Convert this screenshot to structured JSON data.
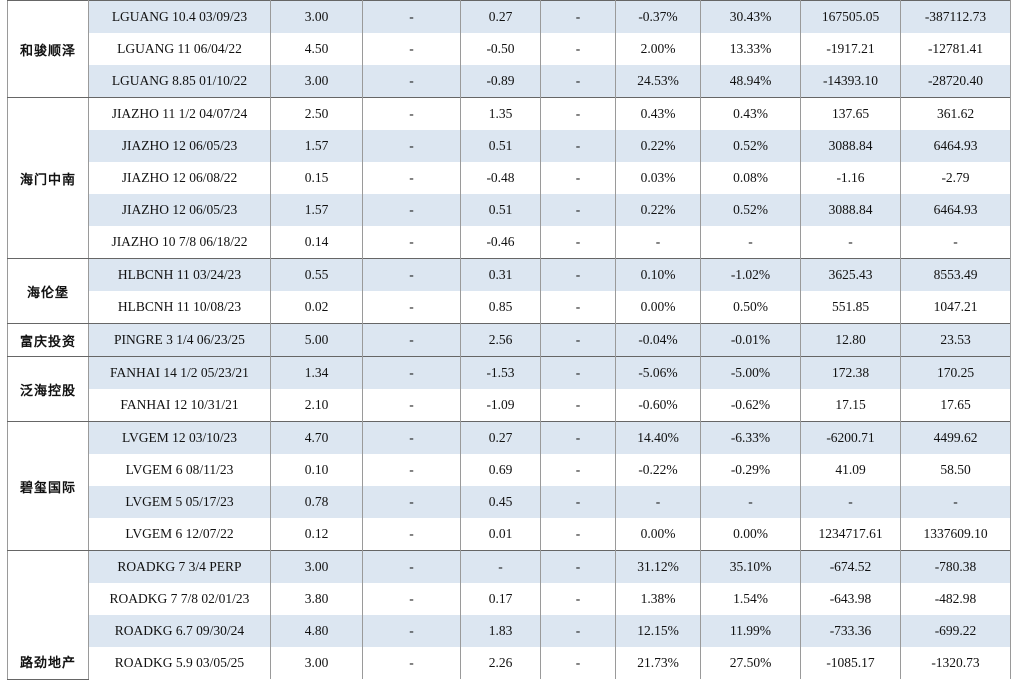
{
  "table": {
    "groups": [
      {
        "name": "和骏顺泽",
        "rows": [
          [
            "LGUANG 10.4 03/09/23",
            "3.00",
            "-",
            "0.27",
            "-",
            "-0.37%",
            "30.43%",
            "167505.05",
            "-387112.73"
          ],
          [
            "LGUANG 11 06/04/22",
            "4.50",
            "-",
            "-0.50",
            "-",
            "2.00%",
            "13.33%",
            "-1917.21",
            "-12781.41"
          ],
          [
            "LGUANG 8.85 01/10/22",
            "3.00",
            "-",
            "-0.89",
            "-",
            "24.53%",
            "48.94%",
            "-14393.10",
            "-28720.40"
          ]
        ]
      },
      {
        "name": "海门中南",
        "rows": [
          [
            "JIAZHO 11 1/2 04/07/24",
            "2.50",
            "-",
            "1.35",
            "-",
            "0.43%",
            "0.43%",
            "137.65",
            "361.62"
          ],
          [
            "JIAZHO 12 06/05/23",
            "1.57",
            "-",
            "0.51",
            "-",
            "0.22%",
            "0.52%",
            "3088.84",
            "6464.93"
          ],
          [
            "JIAZHO 12 06/08/22",
            "0.15",
            "-",
            "-0.48",
            "-",
            "0.03%",
            "0.08%",
            "-1.16",
            "-2.79"
          ],
          [
            "JIAZHO 12 06/05/23",
            "1.57",
            "-",
            "0.51",
            "-",
            "0.22%",
            "0.52%",
            "3088.84",
            "6464.93"
          ],
          [
            "JIAZHO 10 7/8 06/18/22",
            "0.14",
            "-",
            "-0.46",
            "-",
            "-",
            "-",
            "-",
            "-"
          ]
        ]
      },
      {
        "name": "海伦堡",
        "rows": [
          [
            "HLBCNH 11 03/24/23",
            "0.55",
            "-",
            "0.31",
            "-",
            "0.10%",
            "-1.02%",
            "3625.43",
            "8553.49"
          ],
          [
            "HLBCNH 11 10/08/23",
            "0.02",
            "-",
            "0.85",
            "-",
            "0.00%",
            "0.50%",
            "551.85",
            "1047.21"
          ]
        ]
      },
      {
        "name": "富庆投资",
        "rows": [
          [
            "PINGRE 3 1/4 06/23/25",
            "5.00",
            "-",
            "2.56",
            "-",
            "-0.04%",
            "-0.01%",
            "12.80",
            "23.53"
          ]
        ]
      },
      {
        "name": "泛海控股",
        "rows": [
          [
            "FANHAI 14 1/2 05/23/21",
            "1.34",
            "-",
            "-1.53",
            "-",
            "-5.06%",
            "-5.00%",
            "172.38",
            "170.25"
          ],
          [
            "FANHAI 12 10/31/21",
            "2.10",
            "-",
            "-1.09",
            "-",
            "-0.60%",
            "-0.62%",
            "17.15",
            "17.65"
          ]
        ]
      },
      {
        "name": "碧玺国际",
        "rows": [
          [
            "LVGEM 12 03/10/23",
            "4.70",
            "-",
            "0.27",
            "-",
            "14.40%",
            "-6.33%",
            "-6200.71",
            "4499.62"
          ],
          [
            "LVGEM 6 08/11/23",
            "0.10",
            "-",
            "0.69",
            "-",
            "-0.22%",
            "-0.29%",
            "41.09",
            "58.50"
          ],
          [
            "LVGEM 5 05/17/23",
            "0.78",
            "-",
            "0.45",
            "-",
            "-",
            "-",
            "-",
            "-"
          ],
          [
            "LVGEM 6 12/07/22",
            "0.12",
            "-",
            "0.01",
            "-",
            "0.00%",
            "0.00%",
            "1234717.61",
            "1337609.10"
          ]
        ]
      },
      {
        "name": "路劲地产",
        "rows": [
          [
            "ROADKG 7 3/4 PERP",
            "3.00",
            "-",
            "-",
            "-",
            "31.12%",
            "35.10%",
            "-674.52",
            "-780.38"
          ],
          [
            "ROADKG 7 7/8 02/01/23",
            "3.80",
            "-",
            "0.17",
            "-",
            "1.38%",
            "1.54%",
            "-643.98",
            "-482.98"
          ],
          [
            "ROADKG 6.7 09/30/24",
            "4.80",
            "-",
            "1.83",
            "-",
            "12.15%",
            "11.99%",
            "-733.36",
            "-699.22"
          ],
          [
            "ROADKG 5.9 03/05/25",
            "3.00",
            "-",
            "2.26",
            "-",
            "21.73%",
            "27.50%",
            "-1085.17",
            "-1320.73"
          ]
        ]
      }
    ]
  }
}
